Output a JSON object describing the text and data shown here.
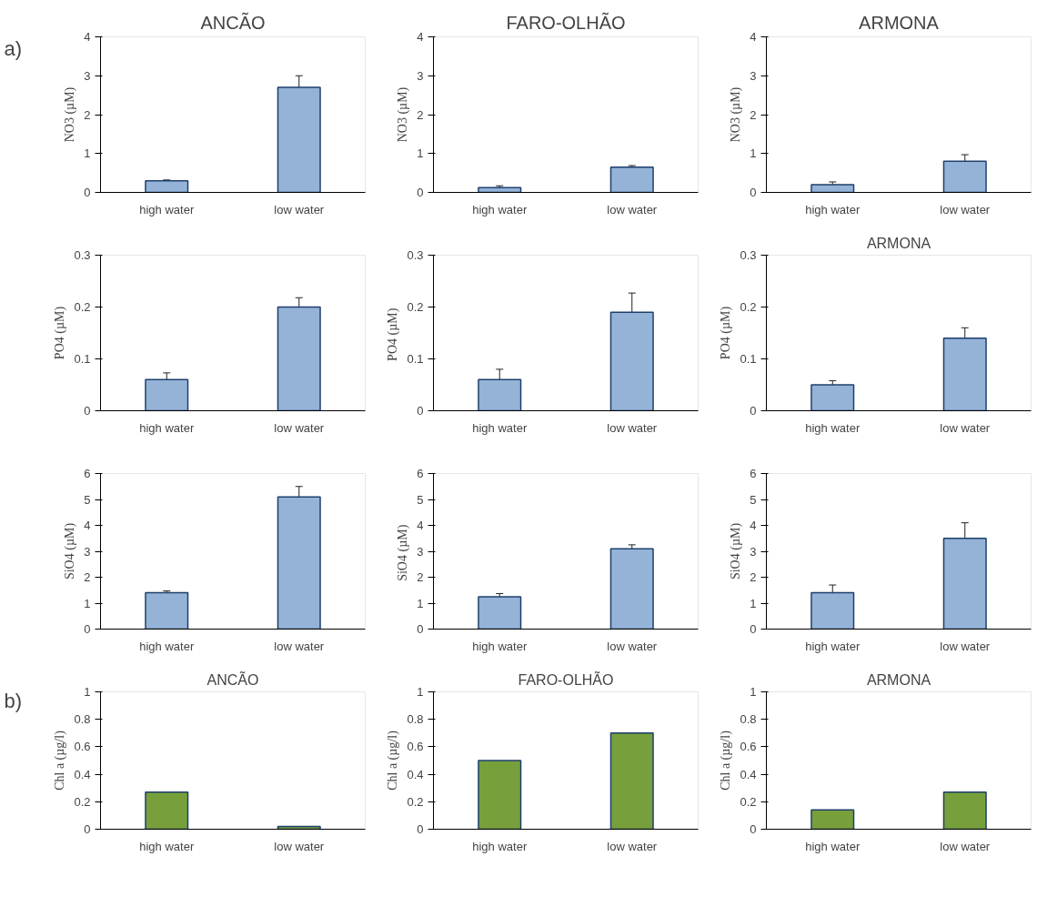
{
  "chart_data": [
    {
      "type": "bar",
      "title": "ANCÃO",
      "ylabel": "NO3 (µM)",
      "categories": [
        "high water",
        "low water"
      ],
      "values": [
        0.3,
        2.7
      ],
      "errors": [
        0.02,
        0.3
      ],
      "color": "#95b3d7",
      "ylim": [
        0,
        4
      ],
      "yticks": [
        0,
        1,
        2,
        3,
        4
      ],
      "annotations": [
        "a)"
      ]
    },
    {
      "type": "bar",
      "title": "FARO-OLHÃO",
      "ylabel": "NO3 (µM)",
      "categories": [
        "high water",
        "low water"
      ],
      "values": [
        0.12,
        0.65
      ],
      "errors": [
        0.05,
        0.04
      ],
      "color": "#95b3d7",
      "ylim": [
        0,
        4
      ],
      "yticks": [
        0,
        1,
        2,
        3,
        4
      ]
    },
    {
      "type": "bar",
      "title": "ARMONA",
      "ylabel": "NO3 (µM)",
      "categories": [
        "high water",
        "low water"
      ],
      "values": [
        0.2,
        0.8
      ],
      "errors": [
        0.07,
        0.17
      ],
      "color": "#95b3d7",
      "ylim": [
        0,
        4
      ],
      "yticks": [
        0,
        1,
        2,
        3,
        4
      ]
    },
    {
      "type": "bar",
      "ylabel": "PO4 (µM)",
      "categories": [
        "high water",
        "low water"
      ],
      "values": [
        0.06,
        0.2
      ],
      "errors": [
        0.013,
        0.018
      ],
      "color": "#95b3d7",
      "ylim": [
        0,
        0.3
      ],
      "yticks": [
        0,
        0.1,
        0.2,
        0.3
      ]
    },
    {
      "type": "bar",
      "ylabel": "PO4  (µM)",
      "categories": [
        "high water",
        "low water"
      ],
      "values": [
        0.06,
        0.19
      ],
      "errors": [
        0.02,
        0.037
      ],
      "color": "#95b3d7",
      "ylim": [
        0,
        0.3
      ],
      "yticks": [
        0,
        0.1,
        0.2,
        0.3
      ]
    },
    {
      "type": "bar",
      "title": "ARMONA",
      "ylabel": "PO4 (µM)",
      "categories": [
        "high water",
        "low water"
      ],
      "values": [
        0.05,
        0.14
      ],
      "errors": [
        0.008,
        0.02
      ],
      "color": "#95b3d7",
      "ylim": [
        0,
        0.3
      ],
      "yticks": [
        0,
        0.1,
        0.2,
        0.3
      ]
    },
    {
      "type": "bar",
      "ylabel": "SiO4 (µM)",
      "categories": [
        "high water",
        "low water"
      ],
      "values": [
        1.4,
        5.1
      ],
      "errors": [
        0.07,
        0.4
      ],
      "color": "#95b3d7",
      "ylim": [
        0,
        6
      ],
      "yticks": [
        0,
        1,
        2,
        3,
        4,
        5,
        6
      ]
    },
    {
      "type": "bar",
      "ylabel": "SiO4  (µM)",
      "categories": [
        "high water",
        "low water"
      ],
      "values": [
        1.25,
        3.1
      ],
      "errors": [
        0.12,
        0.15
      ],
      "color": "#95b3d7",
      "ylim": [
        0,
        6
      ],
      "yticks": [
        0,
        1,
        2,
        3,
        4,
        5,
        6
      ]
    },
    {
      "type": "bar",
      "ylabel": "SiO4 (µM)",
      "categories": [
        "high water",
        "low water"
      ],
      "values": [
        1.4,
        3.5
      ],
      "errors": [
        0.3,
        0.6
      ],
      "color": "#95b3d7",
      "ylim": [
        0,
        6
      ],
      "yticks": [
        0,
        1,
        2,
        3,
        4,
        5,
        6
      ]
    },
    {
      "type": "bar",
      "title": "ANCÃO",
      "ylabel": "Chl a (µg/l)",
      "categories": [
        "high water",
        "low water"
      ],
      "values": [
        0.27,
        0.02
      ],
      "color": "#77a03c",
      "ylim": [
        0,
        1
      ],
      "yticks": [
        0,
        0.2,
        0.4,
        0.6,
        0.8,
        1
      ],
      "annotations": [
        "b)"
      ]
    },
    {
      "type": "bar",
      "title": "FARO-OLHÃO",
      "ylabel": "Chl a (µg/l)",
      "categories": [
        "high water",
        "low water"
      ],
      "values": [
        0.5,
        0.7
      ],
      "color": "#77a03c",
      "ylim": [
        0,
        1
      ],
      "yticks": [
        0,
        0.2,
        0.4,
        0.6,
        0.8,
        1
      ]
    },
    {
      "type": "bar",
      "title": "ARMONA",
      "ylabel": "Chl a (µg/l)",
      "categories": [
        "high water",
        "low water"
      ],
      "values": [
        0.14,
        0.27
      ],
      "color": "#77a03c",
      "ylim": [
        0,
        1
      ],
      "yticks": [
        0,
        0.2,
        0.4,
        0.6,
        0.8,
        1
      ]
    }
  ]
}
